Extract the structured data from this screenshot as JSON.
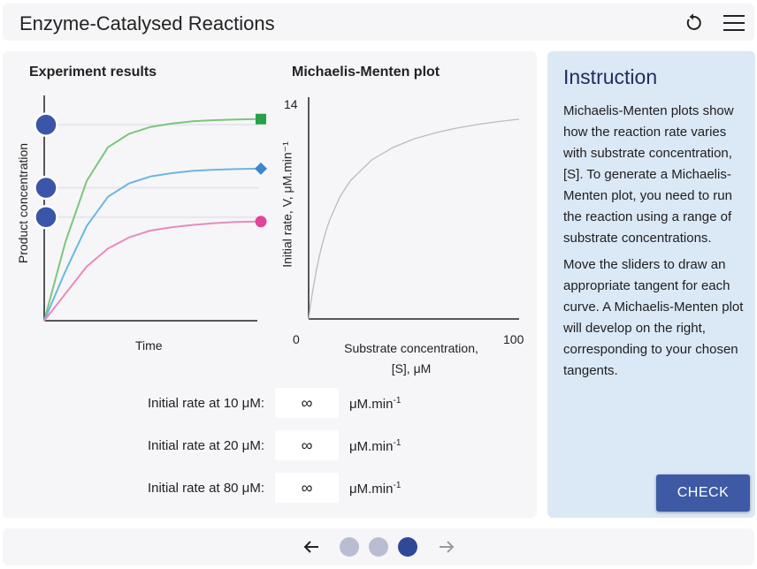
{
  "header": {
    "title": "Enzyme-Catalysed Reactions",
    "reset_icon": "reset-icon",
    "menu_icon": "hamburger-menu-icon"
  },
  "colors": {
    "accent": "#3e5aa5",
    "handle": "#3b55a8",
    "curve_green": "#7bc67c",
    "curve_blue": "#6cb7e0",
    "curve_pink": "#e88bbb",
    "marker_green": "#27a14a",
    "marker_blue": "#3d86cc",
    "marker_pink": "#e2449a",
    "instruction_bg": "#dbe8f6"
  },
  "experiment": {
    "title": "Experiment results",
    "xlabel": "Time",
    "ylabel": "Product concentration"
  },
  "mm_plot": {
    "title": "Michaelis-Menten plot",
    "ylabel": "Initial rate, V, μM.min⁻¹",
    "xlabel_line1": "Substrate concentration,",
    "xlabel_line2": "[S], μM",
    "x_min_label": "0",
    "x_max_label": "100",
    "y_max_label": "14"
  },
  "rates": [
    {
      "label": "Initial rate at 10 μM:",
      "value": "∞",
      "unit": "μM.min",
      "unit_sup": "-1"
    },
    {
      "label": "Initial rate at 20 μM:",
      "value": "∞",
      "unit": "μM.min",
      "unit_sup": "-1"
    },
    {
      "label": "Initial rate at 80 μM:",
      "value": "∞",
      "unit": "μM.min",
      "unit_sup": "-1"
    }
  ],
  "instruction": {
    "title": "Instruction",
    "paragraph1": "Michaelis-Menten plots show how the reaction rate varies with substrate concentration, [S]. To generate a Michaelis-Menten plot, you need to run the reaction using a range of substrate concentrations.",
    "paragraph2": "Move the sliders to draw an appropriate tangent for each curve. A Michaelis-Menten plot will develop on the right, corresponding to your chosen tangents.",
    "check_label": "CHECK"
  },
  "footer": {
    "prev_icon": "arrow-left-icon",
    "next_icon": "arrow-right-icon",
    "pages": [
      {
        "state": "inactive"
      },
      {
        "state": "inactive"
      },
      {
        "state": "active"
      }
    ]
  },
  "chart_data": [
    {
      "type": "line",
      "title": "Experiment results",
      "xlabel": "Time",
      "ylabel": "Product concentration",
      "series": [
        {
          "marker": "square",
          "color": "#7bc67c",
          "x": [
            0,
            1,
            2,
            3,
            4,
            5,
            6,
            7,
            8,
            9,
            10
          ],
          "y": [
            0,
            0.35,
            0.62,
            0.77,
            0.83,
            0.86,
            0.875,
            0.885,
            0.89,
            0.893,
            0.895
          ]
        },
        {
          "marker": "diamond",
          "color": "#6cb7e0",
          "x": [
            0,
            1,
            2,
            3,
            4,
            5,
            6,
            7,
            8,
            9,
            10
          ],
          "y": [
            0,
            0.22,
            0.42,
            0.55,
            0.61,
            0.64,
            0.655,
            0.665,
            0.67,
            0.673,
            0.675
          ]
        },
        {
          "marker": "circle",
          "color": "#e88bbb",
          "x": [
            0,
            1,
            2,
            3,
            4,
            5,
            6,
            7,
            8,
            9,
            10
          ],
          "y": [
            0,
            0.12,
            0.24,
            0.32,
            0.37,
            0.4,
            0.415,
            0.425,
            0.433,
            0.438,
            0.44
          ]
        }
      ],
      "sliders": [
        0.87,
        0.59,
        0.46
      ],
      "grid": false
    },
    {
      "type": "line",
      "title": "Michaelis-Menten plot",
      "xlabel": "Substrate concentration, [S], μM",
      "ylabel": "Initial rate, V, μM.min⁻¹",
      "xlim": [
        0,
        100
      ],
      "ylim": [
        0,
        14
      ],
      "series": [
        {
          "color": "#bbbbbb",
          "x": [
            0,
            1,
            2,
            4,
            6,
            8,
            10,
            15,
            20,
            30,
            40,
            50,
            60,
            70,
            80,
            90,
            100
          ],
          "y": [
            0,
            0.98,
            1.85,
            3.31,
            4.48,
            5.44,
            6.25,
            7.74,
            8.75,
            10.04,
            10.82,
            11.36,
            11.74,
            12.04,
            12.27,
            12.46,
            12.61
          ]
        }
      ],
      "grid": false
    }
  ]
}
